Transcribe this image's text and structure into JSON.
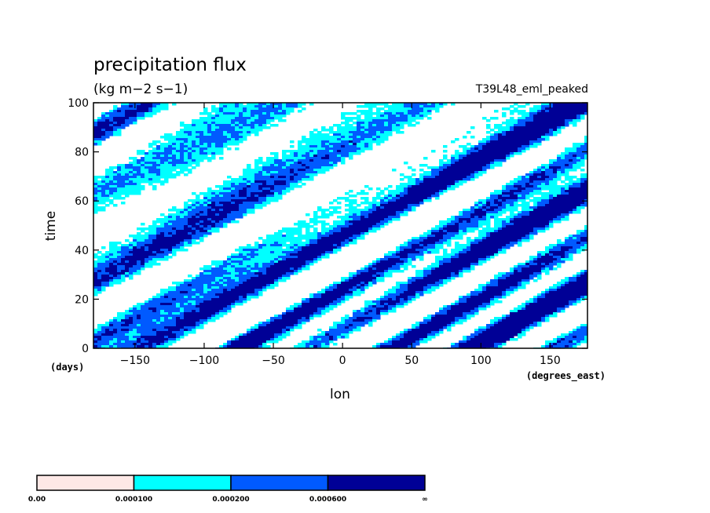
{
  "chart_data": {
    "type": "heatmap",
    "title": "precipitation flux",
    "units": "(kg m−2 s−1)",
    "experiment": "T39L48_eml_peaked",
    "xlabel": "lon",
    "ylabel": "time",
    "x_unit": "(degrees_east)",
    "y_unit": "(days)",
    "xlim": [
      -180,
      177
    ],
    "ylim": [
      0,
      100
    ],
    "x_ticks": [
      -150,
      -100,
      -50,
      0,
      50,
      100,
      150
    ],
    "x_tick_labels": [
      "−150",
      "−100",
      "−50",
      "0",
      "50",
      "100",
      "150"
    ],
    "y_ticks": [
      0,
      20,
      40,
      60,
      80,
      100
    ],
    "y_tick_labels": [
      "0",
      "20",
      "40",
      "60",
      "80",
      "100"
    ],
    "colorbar": {
      "boundary_labels": [
        "0.00",
        "0.000100",
        "0.000200",
        "0.000600",
        "∞"
      ],
      "colors": [
        "#fde8e6",
        "#00ffff",
        "#005aff",
        "#000096"
      ]
    }
  }
}
